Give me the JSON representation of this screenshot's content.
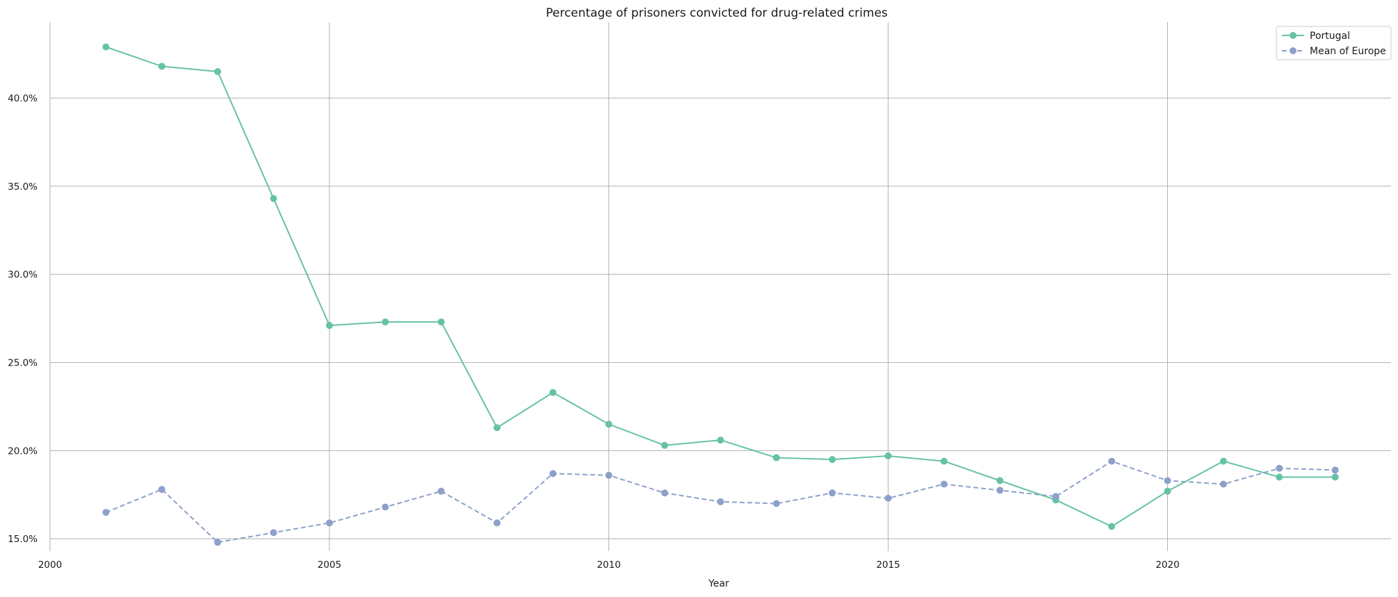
{
  "chart_data": {
    "type": "line",
    "title": "Percentage of prisoners convicted for drug-related crimes",
    "xlabel": "Year",
    "ylabel": "",
    "xlim": [
      2000,
      2024
    ],
    "ylim": [
      14.3,
      44.3
    ],
    "x_ticks": [
      2000,
      2005,
      2010,
      2015,
      2020
    ],
    "y_ticks": [
      15,
      20,
      25,
      30,
      35,
      40
    ],
    "y_tick_labels": [
      "15.0%",
      "20.0%",
      "25.0%",
      "30.0%",
      "35.0%",
      "40.0%"
    ],
    "grid": true,
    "legend_position": "top-right",
    "x": [
      2001,
      2002,
      2003,
      2004,
      2005,
      2006,
      2007,
      2008,
      2009,
      2010,
      2011,
      2012,
      2013,
      2014,
      2015,
      2016,
      2017,
      2018,
      2019,
      2020,
      2021,
      2022,
      2023
    ],
    "series": [
      {
        "name": "Portugal",
        "color": "#66c2a5",
        "line_style": "solid",
        "marker": "circle",
        "values": [
          42.9,
          41.8,
          41.5,
          34.3,
          27.1,
          27.3,
          27.3,
          21.3,
          23.3,
          21.5,
          20.3,
          20.6,
          19.6,
          19.5,
          19.7,
          19.4,
          18.3,
          17.2,
          15.7,
          17.7,
          19.4,
          18.5,
          18.5
        ]
      },
      {
        "name": "Mean of Europe",
        "color": "#8da0cb",
        "line_style": "dashed",
        "marker": "circle",
        "values": [
          16.5,
          17.8,
          14.8,
          15.35,
          15.9,
          16.8,
          17.7,
          15.9,
          18.7,
          18.6,
          17.6,
          17.1,
          17.0,
          17.6,
          17.3,
          18.1,
          17.75,
          17.4,
          19.4,
          18.3,
          18.1,
          19.0,
          18.9
        ]
      }
    ]
  }
}
